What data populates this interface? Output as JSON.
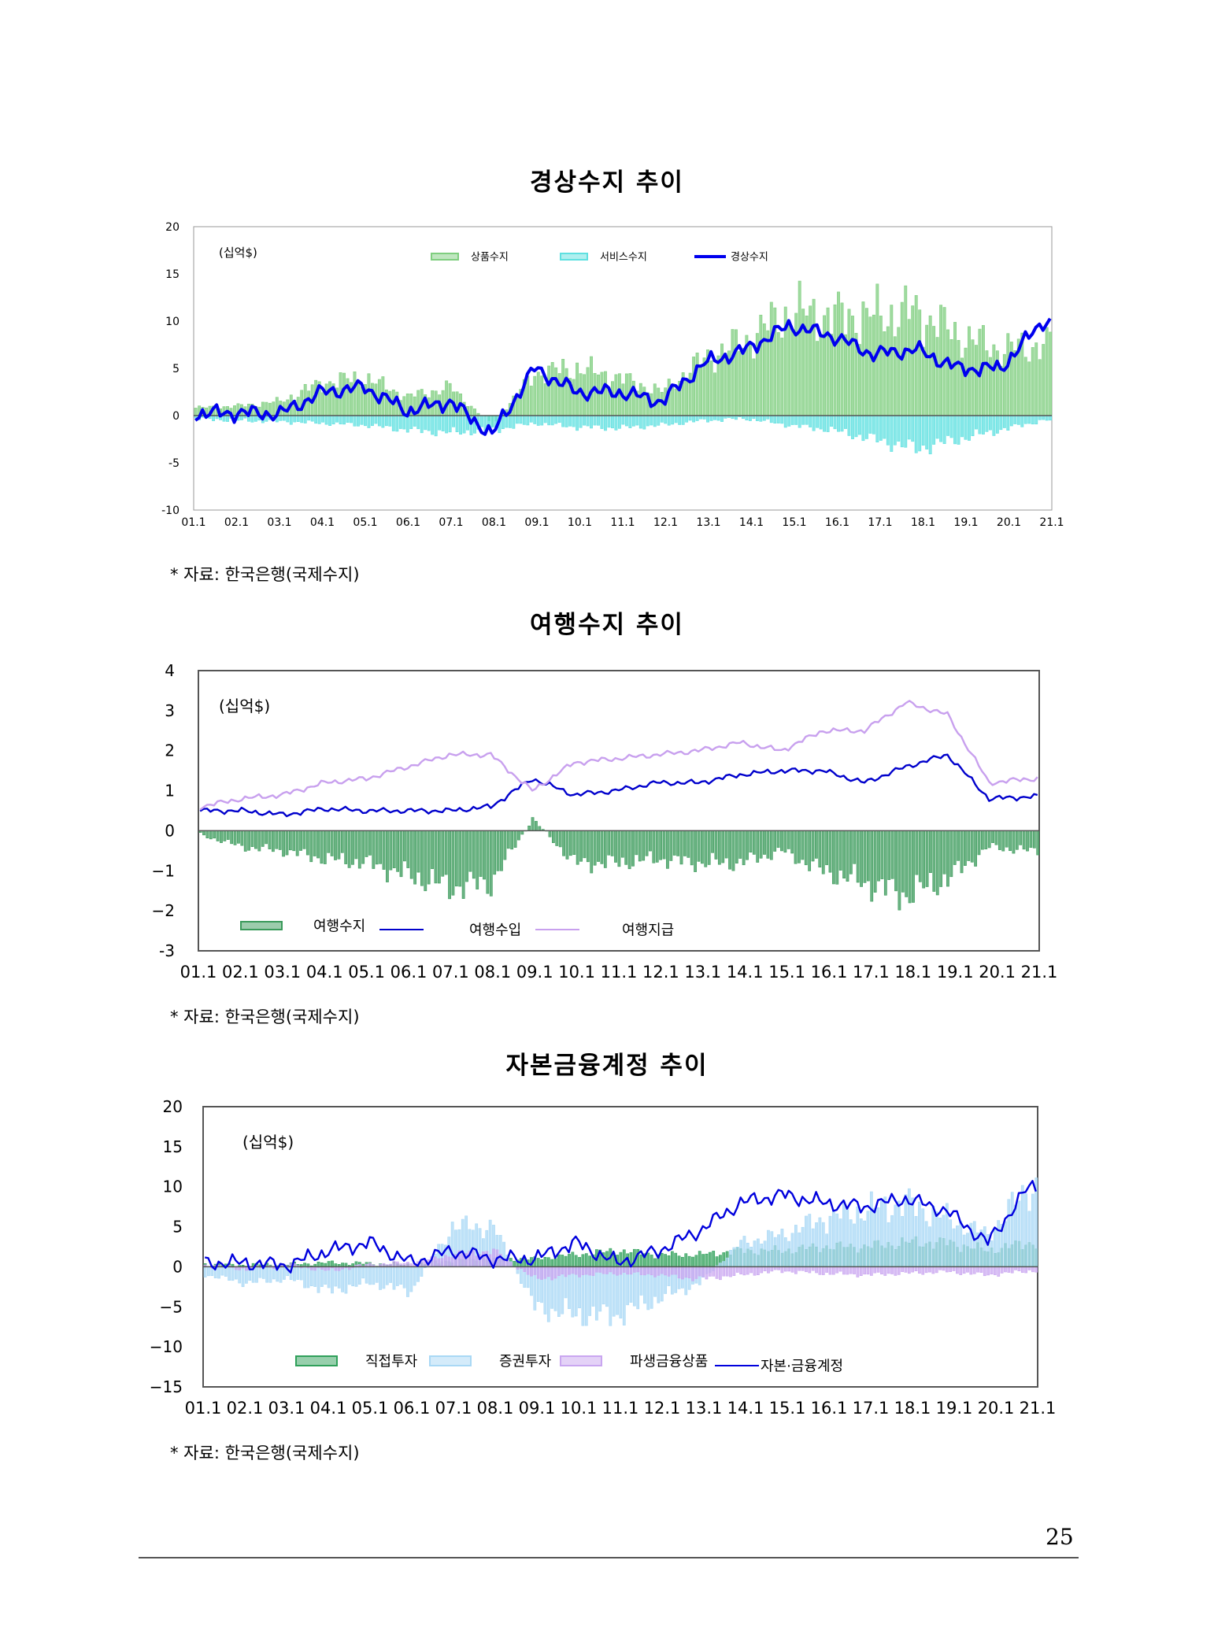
{
  "page_number": "25",
  "charts_meta": [
    {
      "title": "경상수지 추이",
      "source": "* 자료: 한국은행(국제수지)",
      "unit": "(십억$)"
    },
    {
      "title": "여행수지 추이",
      "source": "* 자료: 한국은행(국제수지)",
      "unit": "(십억$)"
    },
    {
      "title": "자본금융계정 추이",
      "source": "* 자료: 한국은행(국제수지)",
      "unit": "(십억$)"
    }
  ],
  "chart_data": [
    {
      "type": "bar",
      "title": "경상수지 추이",
      "unit": "(십억$)",
      "ylim": [
        -10,
        20
      ],
      "yticks": [
        "20",
        "15",
        "10",
        "5",
        "0",
        "-5",
        "-10"
      ],
      "categories": [
        "01.1",
        "02.1",
        "03.1",
        "04.1",
        "05.1",
        "06.1",
        "07.1",
        "08.1",
        "09.1",
        "10.1",
        "11.1",
        "12.1",
        "13.1",
        "14.1",
        "15.1",
        "16.1",
        "17.1",
        "18.1",
        "19.1",
        "20.1",
        "21.1"
      ],
      "legend_placement": "top",
      "series": [
        {
          "name": "상품수지",
          "kind": "bar",
          "color": "#7fce7f",
          "values": [
            0.8,
            1.0,
            1.5,
            3.5,
            4.0,
            2.0,
            3.0,
            -1.0,
            4.5,
            5.0,
            4.0,
            2.5,
            6.0,
            8.0,
            11.0,
            10.5,
            10.5,
            11.0,
            8.5,
            7.0,
            7.5
          ]
        },
        {
          "name": "서비스수지",
          "kind": "bar",
          "color": "#5fe0e0",
          "values": [
            -0.3,
            -0.5,
            -0.6,
            -0.8,
            -1.0,
            -1.5,
            -1.8,
            -1.5,
            -0.8,
            -1.2,
            -1.3,
            -1.0,
            -0.5,
            -0.3,
            -1.0,
            -1.5,
            -2.5,
            -3.5,
            -2.5,
            -1.5,
            -0.5
          ]
        },
        {
          "name": "경상수지",
          "kind": "line",
          "color": "#0000ee",
          "values": [
            0.2,
            0.3,
            0.2,
            2.5,
            3.0,
            0.5,
            1.5,
            -2.0,
            5.0,
            2.5,
            2.5,
            1.5,
            5.5,
            7.0,
            9.5,
            8.5,
            6.5,
            7.0,
            5.0,
            5.0,
            10.0
          ]
        }
      ]
    },
    {
      "type": "bar",
      "title": "여행수지 추이",
      "unit": "(십억$)",
      "ylim": [
        -3,
        4
      ],
      "yticks": [
        "4",
        "3",
        "2",
        "1",
        "0",
        "−1",
        "−2",
        "-3"
      ],
      "categories": [
        "01.1",
        "02.1",
        "03.1",
        "04.1",
        "05.1",
        "06.1",
        "07.1",
        "08.1",
        "09.1",
        "10.1",
        "11.1",
        "12.1",
        "13.1",
        "14.1",
        "15.1",
        "16.1",
        "17.1",
        "18.1",
        "19.1",
        "20.1",
        "21.1"
      ],
      "legend_placement": "bottom-left",
      "series": [
        {
          "name": "여행수지",
          "kind": "bar",
          "color": "#3a9a5a",
          "values": [
            -0.1,
            -0.4,
            -0.5,
            -0.7,
            -0.8,
            -1.1,
            -1.4,
            -1.3,
            0.3,
            -0.8,
            -0.8,
            -0.7,
            -0.8,
            -0.8,
            -0.5,
            -1.0,
            -1.3,
            -1.6,
            -1.2,
            -0.4,
            -0.5
          ]
        },
        {
          "name": "여행수입",
          "kind": "line",
          "color": "#0000cc",
          "values": [
            0.5,
            0.5,
            0.4,
            0.55,
            0.5,
            0.5,
            0.5,
            0.6,
            1.3,
            0.9,
            1.0,
            1.2,
            1.2,
            1.4,
            1.5,
            1.5,
            1.2,
            1.6,
            1.9,
            0.8,
            0.85
          ]
        },
        {
          "name": "여행지급",
          "kind": "line",
          "color": "#c8a0ee",
          "values": [
            0.6,
            0.8,
            0.9,
            1.2,
            1.3,
            1.6,
            1.9,
            1.9,
            1.0,
            1.7,
            1.8,
            1.9,
            2.0,
            2.2,
            2.0,
            2.5,
            2.5,
            3.2,
            2.9,
            1.2,
            1.3
          ]
        }
      ]
    },
    {
      "type": "bar",
      "title": "자본금융계정 추이",
      "unit": "(십억$)",
      "ylim": [
        -15,
        20
      ],
      "yticks": [
        "20",
        "15",
        "10",
        "5",
        "0",
        "−5",
        "−10",
        "−15"
      ],
      "categories": [
        "01.1",
        "02.1",
        "03.1",
        "04.1",
        "05.1",
        "06.1",
        "07.1",
        "08.1",
        "09.1",
        "10.1",
        "11.1",
        "12.1",
        "13.1",
        "14.1",
        "15.1",
        "16.1",
        "17.1",
        "18.1",
        "19.1",
        "20.1",
        "21.1"
      ],
      "legend_placement": "bottom",
      "series": [
        {
          "name": "직접투자",
          "kind": "bar",
          "color": "#2fa05a",
          "values": [
            0.3,
            0.2,
            0.3,
            0.5,
            0.4,
            0.2,
            0.8,
            1.0,
            1.0,
            1.5,
            2.0,
            1.5,
            1.5,
            2.0,
            2.0,
            2.5,
            2.5,
            3.0,
            3.0,
            2.0,
            3.0
          ]
        },
        {
          "name": "증권투자",
          "kind": "bar",
          "color": "#a9d8f5",
          "values": [
            -1.0,
            -2.0,
            -1.5,
            -3.0,
            -2.0,
            -3.0,
            5.0,
            5.0,
            -5.0,
            -6.0,
            -6.0,
            -4.0,
            -2.0,
            3.0,
            4.0,
            6.0,
            7.0,
            8.0,
            6.0,
            4.0,
            10.0
          ]
        },
        {
          "name": "파생금융상품",
          "kind": "bar",
          "color": "#c9a6f0",
          "values": [
            0.2,
            -0.3,
            0.3,
            -0.5,
            0.3,
            0.5,
            1.5,
            2.0,
            -1.5,
            -1.0,
            -0.8,
            -1.0,
            -1.5,
            -1.0,
            -0.5,
            -0.8,
            -1.0,
            -0.8,
            -0.6,
            -1.0,
            -0.5
          ]
        },
        {
          "name": "자본·금융계정",
          "kind": "line",
          "color": "#0000dd",
          "values": [
            0.5,
            0.5,
            0.2,
            2.0,
            3.0,
            0.5,
            2.0,
            1.0,
            1.0,
            3.0,
            0.5,
            2.0,
            4.5,
            8.0,
            9.0,
            8.0,
            7.5,
            8.5,
            7.0,
            3.0,
            10.0
          ]
        }
      ]
    }
  ]
}
